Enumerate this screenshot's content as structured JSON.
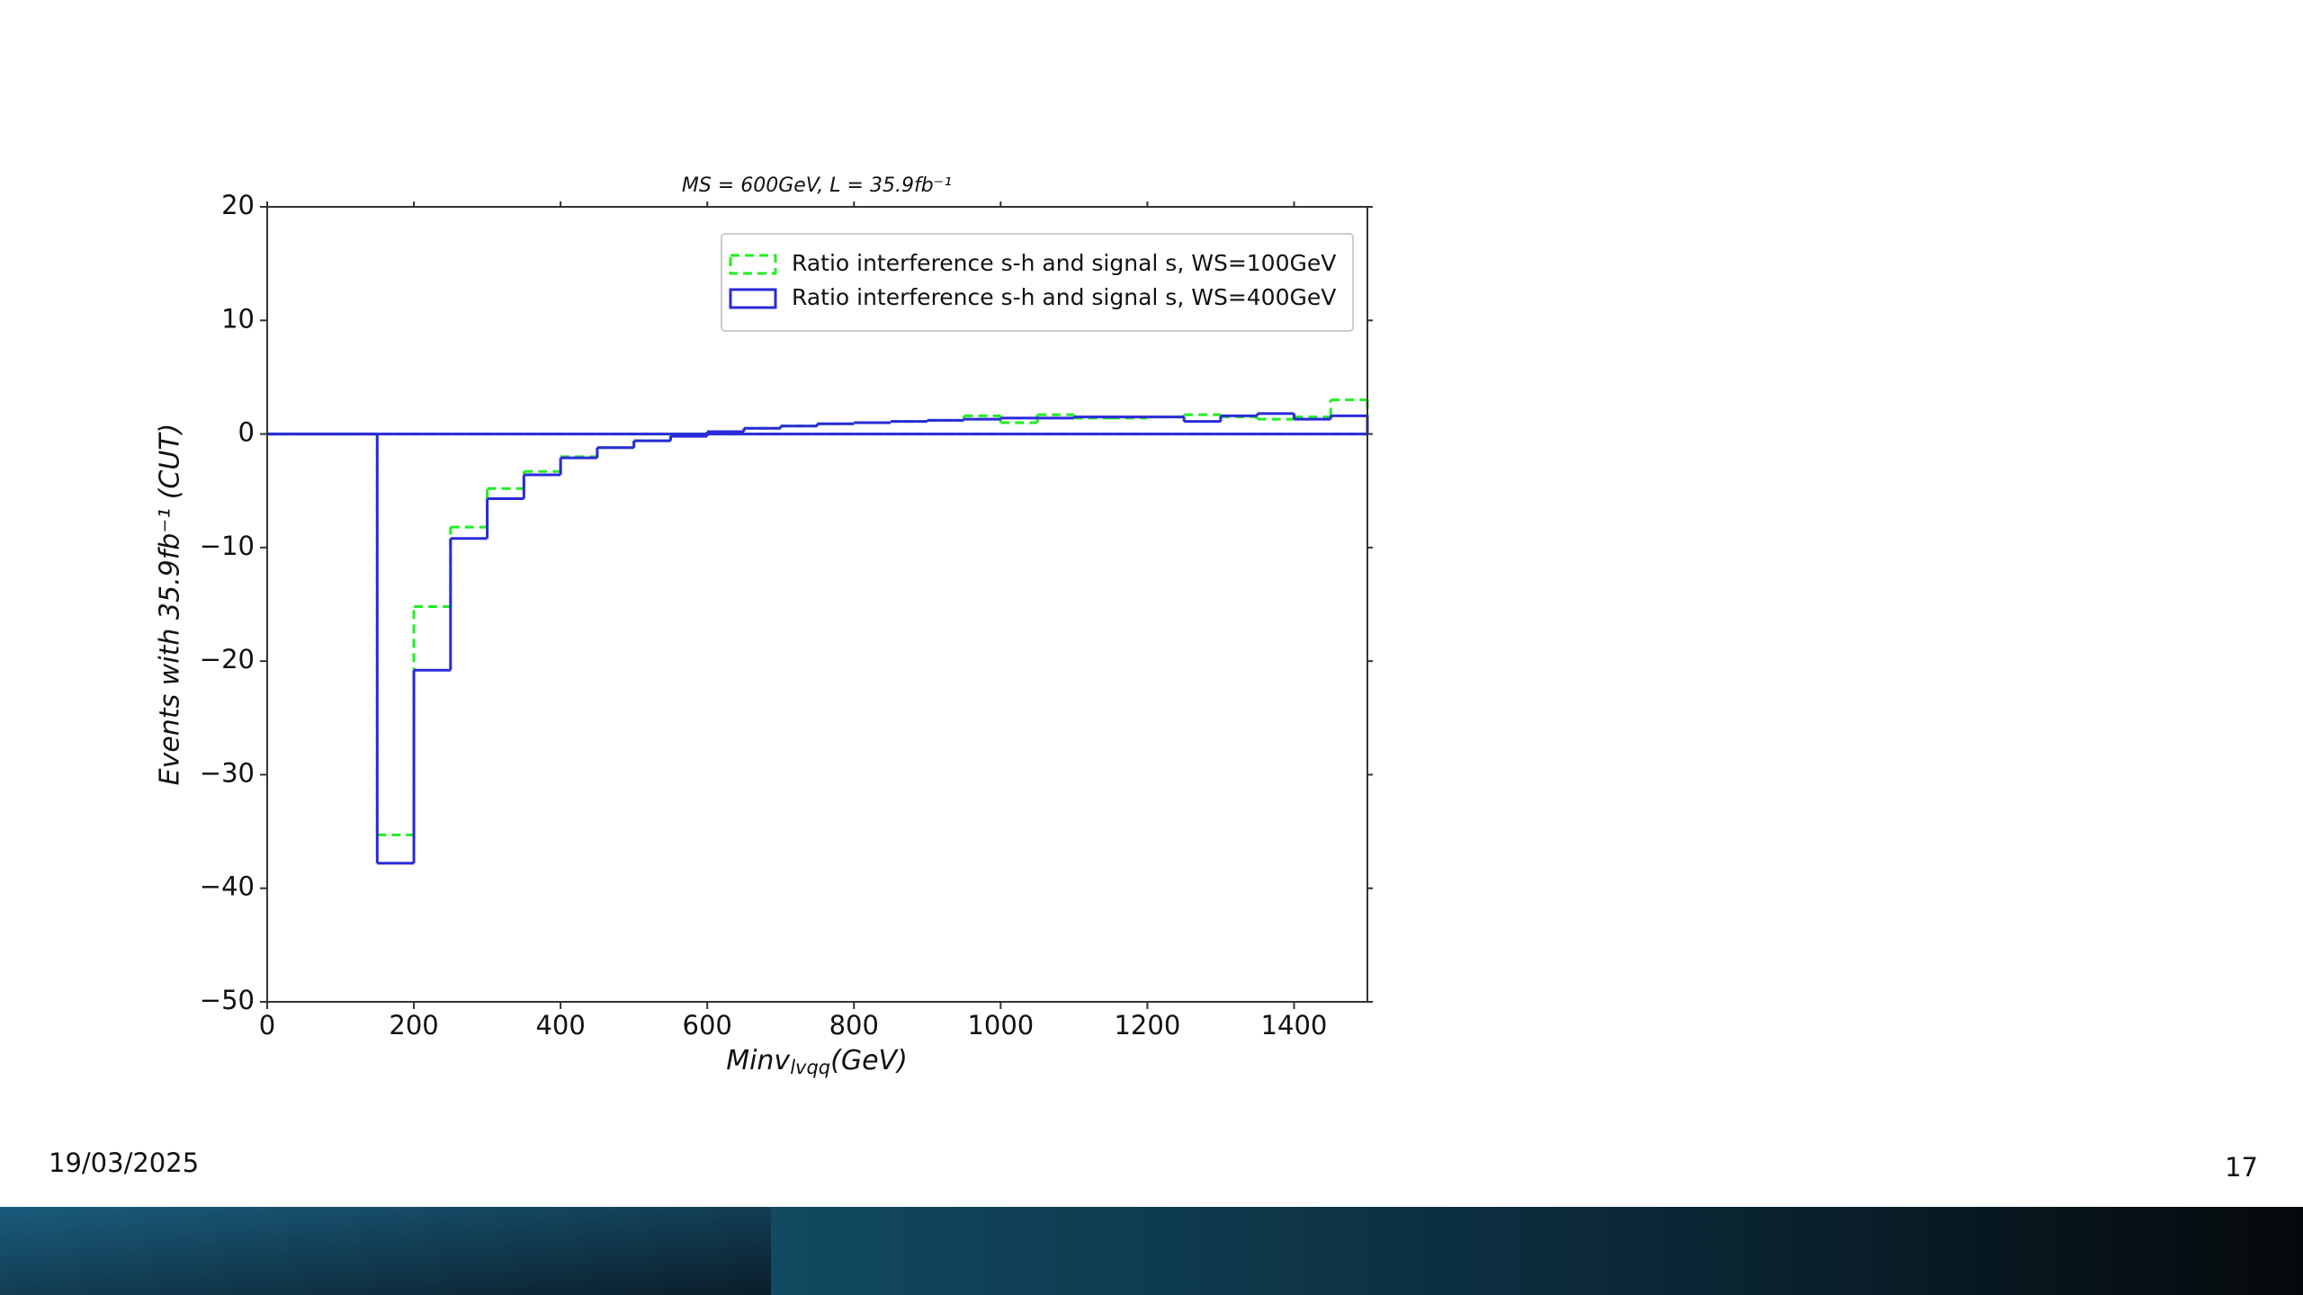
{
  "chart_data": {
    "type": "step-histogram",
    "title": "MS = 600GeV,  L = 35.9fb⁻¹",
    "x_label": {
      "main": "Minv",
      "sub": "lvqq",
      "unit": "(GeV)"
    },
    "y_label": "Events with 35.9fb⁻¹ (CUT)",
    "bins": [
      0,
      50,
      100,
      150,
      200,
      250,
      300,
      350,
      400,
      450,
      500,
      550,
      600,
      650,
      700,
      750,
      800,
      850,
      900,
      950,
      1000,
      1050,
      1100,
      1150,
      1200,
      1250,
      1300,
      1350,
      1400,
      1450,
      1500
    ],
    "series": [
      {
        "name": "Ratio interference s-h and signal s,  WS=100GeV",
        "color": "#22ee22",
        "linestyle": "dashed",
        "values": [
          0,
          0,
          0,
          -35.3,
          -15.2,
          -8.2,
          -4.8,
          -3.3,
          -2.0,
          -1.2,
          -0.6,
          -0.1,
          0.2,
          0.5,
          0.7,
          0.9,
          1.0,
          1.1,
          1.2,
          1.6,
          1.0,
          1.7,
          1.4,
          1.4,
          1.5,
          1.7,
          1.5,
          1.3,
          1.5,
          3.0
        ]
      },
      {
        "name": "Ratio interference s-h and signal s,  WS=400GeV",
        "color": "#2a2ad8",
        "linestyle": "solid",
        "values": [
          0,
          0,
          0,
          -37.8,
          -20.8,
          -9.2,
          -5.7,
          -3.6,
          -2.1,
          -1.2,
          -0.6,
          -0.2,
          0.2,
          0.5,
          0.7,
          0.9,
          1.0,
          1.1,
          1.2,
          1.3,
          1.4,
          1.4,
          1.5,
          1.5,
          1.5,
          1.1,
          1.6,
          1.8,
          1.3,
          1.6
        ]
      }
    ],
    "xlim": [
      0,
      1500
    ],
    "xticks": [
      0,
      200,
      400,
      600,
      800,
      1000,
      1200,
      1400
    ],
    "ylim": [
      -50,
      20
    ],
    "yticks": [
      {
        "value": -50,
        "label": "−50"
      },
      {
        "value": -40,
        "label": "−40"
      },
      {
        "value": -30,
        "label": "−30"
      },
      {
        "value": -20,
        "label": "−20"
      },
      {
        "value": -10,
        "label": "−10"
      },
      0,
      10,
      20
    ],
    "legend": "upper right"
  },
  "footer": {
    "date": "19/03/2025",
    "page": "17"
  }
}
